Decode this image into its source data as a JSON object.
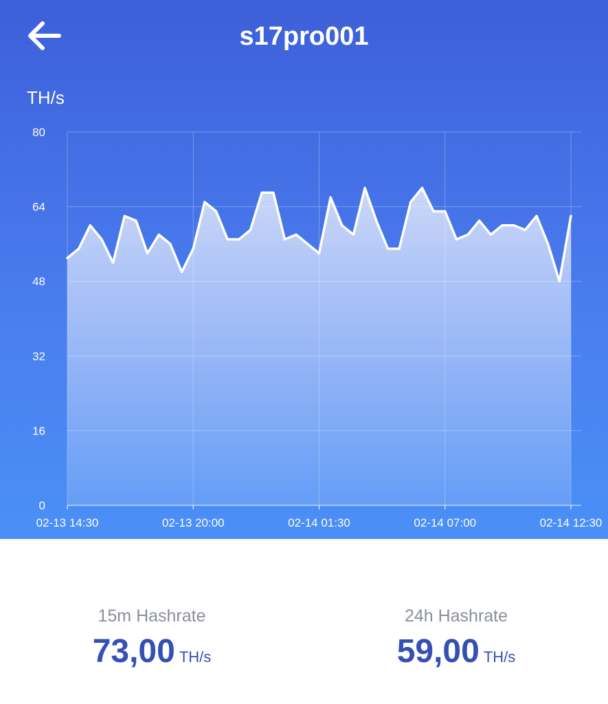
{
  "header": {
    "title": "s17pro001",
    "unit": "TH/s",
    "back_icon": "arrow-left-icon"
  },
  "colors": {
    "gradient_top": "#3d5fd9",
    "gradient_bottom": "#4a8ff6",
    "value_blue": "#3450b5",
    "label_gray": "#8a8f99"
  },
  "chart_data": {
    "type": "area",
    "ylabel": "TH/s",
    "ylim": [
      0,
      80
    ],
    "yticks": [
      0,
      16,
      32,
      48,
      64,
      80
    ],
    "xticks": [
      "02-13 14:30",
      "02-13 20:00",
      "02-14 01:30",
      "02-14 07:00",
      "02-14 12:30"
    ],
    "grid": true,
    "values": [
      53,
      55,
      60,
      57,
      52,
      62,
      61,
      54,
      58,
      56,
      50,
      55,
      65,
      63,
      57,
      57,
      59,
      67,
      67,
      57,
      58,
      56,
      54,
      66,
      60,
      58,
      68,
      61,
      55,
      55,
      65,
      68,
      63,
      63,
      57,
      58,
      61,
      58,
      60,
      60,
      59,
      62,
      56,
      48,
      62
    ]
  },
  "stats": [
    {
      "label": "15m Hashrate",
      "value": "73,00",
      "unit": "TH/s"
    },
    {
      "label": "24h Hashrate",
      "value": "59,00",
      "unit": "TH/s"
    }
  ]
}
